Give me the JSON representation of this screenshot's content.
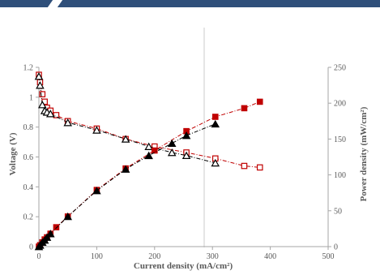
{
  "colors": {
    "banner_main": "#2f4f7a",
    "banner_accent": "#4a6d9c",
    "series_red": "#c00000",
    "series_black": "#000000",
    "axis": "#a6a6a6",
    "text": "#595959"
  },
  "chart_data": {
    "type": "scatter",
    "title": "",
    "xlabel": "Current density (mA/cm²)",
    "ylabel": "Voltage (V)",
    "y2label": "Power density (mW/cm²)",
    "xlim": [
      0,
      500
    ],
    "ylim": [
      0,
      1.2
    ],
    "y2lim": [
      0,
      250
    ],
    "x_ticks": [
      "0",
      "100",
      "200",
      "300",
      "400",
      "500"
    ],
    "y_ticks": [
      "0",
      "0.2",
      "0.4",
      "0.6",
      "0.8",
      "1",
      "1.2"
    ],
    "y2_ticks": [
      "0",
      "50",
      "100",
      "150",
      "200",
      "250"
    ],
    "grid": false,
    "legend": "none",
    "series": [
      {
        "axis": "left",
        "marker": "square-open",
        "color": "#c00000",
        "line": "dash-dot",
        "x": [
          0,
          2,
          6,
          10,
          14,
          20,
          30,
          50,
          100,
          150,
          200,
          255,
          305,
          355,
          382
        ],
        "y": [
          1.15,
          1.1,
          1.02,
          0.97,
          0.93,
          0.91,
          0.88,
          0.84,
          0.79,
          0.72,
          0.67,
          0.63,
          0.59,
          0.54,
          0.53
        ]
      },
      {
        "axis": "left",
        "marker": "triangle-open",
        "color": "#000000",
        "line": "dash-dot",
        "x": [
          0,
          2,
          6,
          10,
          14,
          20,
          50,
          100,
          150,
          190,
          230,
          255,
          305
        ],
        "y": [
          1.14,
          1.08,
          0.95,
          0.91,
          0.9,
          0.89,
          0.83,
          0.78,
          0.72,
          0.67,
          0.63,
          0.61,
          0.56
        ]
      },
      {
        "axis": "right",
        "marker": "square-filled",
        "color": "#c00000",
        "line": "dash-dot",
        "x": [
          0,
          2,
          6,
          10,
          14,
          20,
          30,
          50,
          100,
          150,
          200,
          255,
          305,
          355,
          382
        ],
        "y": [
          0,
          2,
          6,
          10,
          13,
          18,
          27,
          42,
          79,
          109,
          134,
          161,
          181,
          193,
          202
        ]
      },
      {
        "axis": "right",
        "marker": "triangle-filled",
        "color": "#000000",
        "line": "dash-dot",
        "x": [
          0,
          2,
          6,
          10,
          14,
          20,
          50,
          100,
          150,
          190,
          230,
          255,
          305
        ],
        "y": [
          0,
          2,
          6,
          9,
          13,
          18,
          42,
          78,
          108,
          127,
          144,
          155,
          171
        ]
      }
    ]
  }
}
